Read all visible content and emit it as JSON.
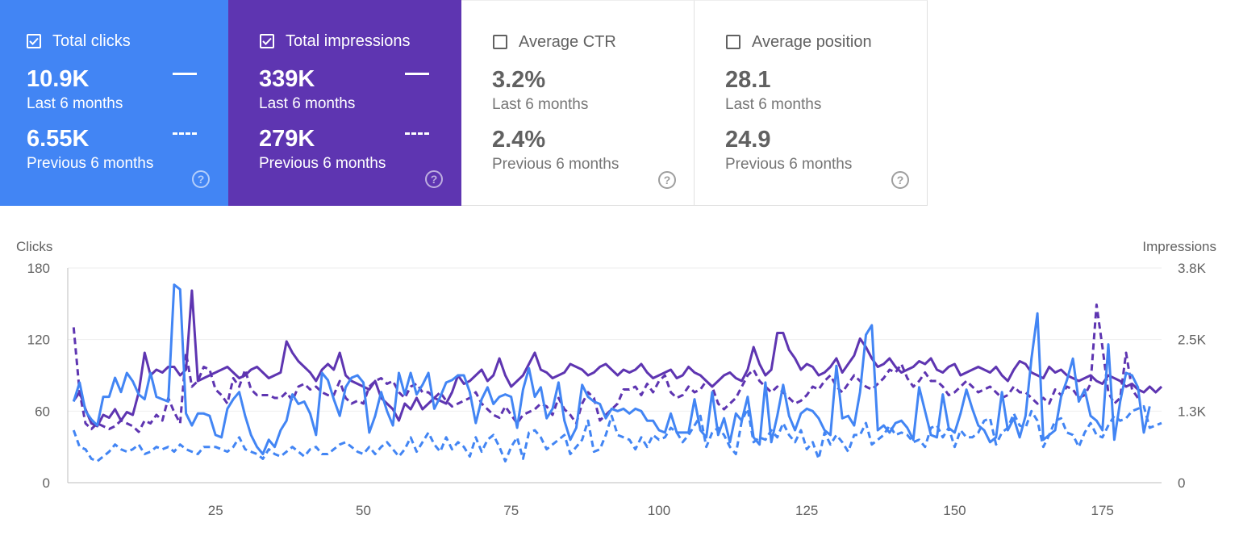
{
  "cards": [
    {
      "title": "Total clicks",
      "checked": true,
      "value": "10.9K",
      "period": "Last 6 months",
      "prev_value": "6.55K",
      "prev_period": "Previous 6 months",
      "help_icon": "help-circle-icon",
      "color": "#4285f4"
    },
    {
      "title": "Total impressions",
      "checked": true,
      "value": "339K",
      "period": "Last 6 months",
      "prev_value": "279K",
      "prev_period": "Previous 6 months",
      "help_icon": "help-circle-icon",
      "color": "#5e35b1"
    },
    {
      "title": "Average CTR",
      "checked": false,
      "value": "3.2%",
      "period": "Last 6 months",
      "prev_value": "2.4%",
      "prev_period": "Previous 6 months",
      "help_icon": "help-circle-icon",
      "color": "#ffffff"
    },
    {
      "title": "Average position",
      "checked": false,
      "value": "28.1",
      "period": "Last 6 months",
      "prev_value": "24.9",
      "prev_period": "Previous 6 months",
      "help_icon": "help-circle-icon",
      "color": "#ffffff"
    }
  ],
  "chart_data": {
    "type": "line",
    "ylabel_left": "Clicks",
    "ylabel_right": "Impressions",
    "left_ticks": [
      "180",
      "120",
      "60",
      "0"
    ],
    "right_ticks": [
      "3.8K",
      "2.5K",
      "1.3K",
      "0"
    ],
    "x_ticks": [
      "25",
      "50",
      "75",
      "100",
      "125",
      "150",
      "175"
    ],
    "ylim_left": [
      0,
      180
    ],
    "ylim_right": [
      0,
      3800
    ],
    "xlim": [
      0,
      185
    ],
    "grid": true,
    "series": [
      {
        "name": "Clicks",
        "axis": "left",
        "style": "solid",
        "color": "#4285f4",
        "values": [
          68,
          84,
          60,
          53,
          48,
          72,
          72,
          88,
          76,
          92,
          85,
          74,
          70,
          92,
          72,
          70,
          68,
          166,
          162,
          58,
          48,
          58,
          58,
          56,
          40,
          38,
          62,
          70,
          76,
          56,
          40,
          30,
          24,
          36,
          30,
          44,
          52,
          74,
          66,
          68,
          58,
          40,
          92,
          86,
          70,
          56,
          80,
          88,
          90,
          84,
          42,
          56,
          76,
          60,
          48,
          92,
          74,
          92,
          74,
          82,
          92,
          62,
          72,
          84,
          86,
          90,
          90,
          76,
          50,
          70,
          80,
          66,
          72,
          74,
          72,
          46,
          78,
          96,
          72,
          80,
          54,
          62,
          84,
          52,
          36,
          46,
          82,
          72,
          68,
          66,
          54,
          62,
          60,
          62,
          58,
          62,
          60,
          52,
          52,
          44,
          42,
          58,
          42,
          42,
          42,
          70,
          44,
          38,
          76,
          40,
          54,
          34,
          58,
          52,
          72,
          38,
          32,
          84,
          34,
          56,
          82,
          56,
          44,
          58,
          62,
          60,
          54,
          44,
          40,
          98,
          54,
          56,
          48,
          76,
          124,
          132,
          44,
          48,
          42,
          50,
          52,
          46,
          36,
          80,
          60,
          40,
          38,
          74,
          46,
          42,
          58,
          78,
          62,
          48,
          44,
          34,
          38,
          76,
          44,
          54,
          38,
          56,
          104,
          142,
          36,
          40,
          44,
          72,
          86,
          104,
          68,
          78,
          56,
          52,
          44,
          116,
          36,
          68,
          92,
          90,
          80,
          42,
          64
        ]
      },
      {
        "name": "Clicks",
        "axis": "left",
        "style": "dashed",
        "color": "#4285f4",
        "values": [
          44,
          30,
          28,
          20,
          18,
          22,
          26,
          32,
          28,
          26,
          28,
          32,
          24,
          26,
          30,
          28,
          30,
          26,
          32,
          28,
          26,
          24,
          30,
          30,
          30,
          28,
          26,
          30,
          38,
          28,
          26,
          24,
          20,
          28,
          24,
          22,
          26,
          30,
          26,
          22,
          28,
          30,
          24,
          24,
          28,
          32,
          34,
          30,
          26,
          24,
          30,
          24,
          30,
          34,
          28,
          22,
          28,
          38,
          26,
          34,
          42,
          32,
          26,
          38,
          28,
          34,
          30,
          22,
          38,
          26,
          36,
          40,
          30,
          18,
          30,
          38,
          20,
          42,
          44,
          38,
          28,
          32,
          36,
          40,
          24,
          30,
          36,
          52,
          26,
          28,
          40,
          56,
          40,
          38,
          36,
          28,
          38,
          30,
          40,
          36,
          38,
          46,
          42,
          34,
          40,
          48,
          56,
          30,
          42,
          46,
          40,
          30,
          24,
          52,
          62,
          34,
          38,
          36,
          44,
          38,
          50,
          40,
          34,
          44,
          28,
          34,
          20,
          42,
          32,
          40,
          34,
          26,
          40,
          40,
          50,
          32,
          36,
          40,
          48,
          40,
          42,
          40,
          34,
          36,
          30,
          46,
          48,
          38,
          46,
          30,
          44,
          38,
          38,
          42,
          52,
          54,
          32,
          42,
          46,
          58,
          48,
          46,
          60,
          52,
          30,
          40,
          52,
          54,
          42,
          40,
          30,
          42,
          50,
          40,
          38,
          48,
          56,
          52,
          54,
          60,
          62,
          64,
          46,
          48,
          50
        ]
      },
      {
        "name": "Impressions",
        "axis": "right",
        "style": "solid",
        "color": "#5e35b1",
        "values": [
          1450,
          1600,
          1300,
          1050,
          1000,
          1200,
          1150,
          1300,
          1100,
          1250,
          1200,
          1600,
          2300,
          1900,
          2000,
          1950,
          2050,
          2050,
          1900,
          2000,
          3400,
          1800,
          1850,
          1900,
          1950,
          2000,
          2050,
          1950,
          1850,
          1900,
          2000,
          2050,
          1950,
          1850,
          1900,
          1950,
          2500,
          2300,
          2150,
          2050,
          1950,
          1800,
          2000,
          2100,
          2000,
          2300,
          1900,
          1800,
          1750,
          1700,
          1650,
          1800,
          1500,
          1400,
          1300,
          1100,
          1400,
          1300,
          1500,
          1300,
          1400,
          1500,
          1450,
          1400,
          1600,
          1900,
          1750,
          1800,
          1900,
          2000,
          1800,
          1900,
          2200,
          1900,
          1700,
          1800,
          1900,
          2100,
          2300,
          2000,
          1950,
          1850,
          1900,
          1950,
          2100,
          2050,
          2000,
          1900,
          1950,
          2050,
          2100,
          2000,
          1900,
          2000,
          1950,
          2000,
          2100,
          1950,
          1850,
          1900,
          1950,
          2000,
          1850,
          1900,
          2050,
          1950,
          1900,
          1800,
          1700,
          1800,
          1900,
          1950,
          1850,
          1800,
          2000,
          2400,
          2100,
          1900,
          2000,
          2650,
          2650,
          2350,
          2200,
          2000,
          2100,
          2050,
          1900,
          1950,
          2050,
          2200,
          1950,
          2100,
          2250,
          2550,
          2400,
          2200,
          2050,
          2100,
          2200,
          2050,
          1950,
          2000,
          2050,
          2150,
          2100,
          2200,
          2000,
          1950,
          2050,
          2100,
          1900,
          1950,
          2000,
          2050,
          2000,
          1950,
          2050,
          1900,
          1800,
          2000,
          2150,
          2100,
          1950,
          1900,
          1850,
          2050,
          1950,
          2000,
          1900,
          1850,
          1800,
          1850,
          1900,
          1800,
          1750,
          1900,
          1850,
          1800,
          1700,
          1750,
          1650,
          1600,
          1700,
          1600,
          1700
        ]
      },
      {
        "name": "Impressions",
        "axis": "right",
        "style": "dashed",
        "color": "#5e35b1",
        "values": [
          2750,
          1600,
          1050,
          950,
          1050,
          1000,
          950,
          1000,
          1100,
          1050,
          1000,
          900,
          1100,
          1050,
          1200,
          1100,
          1500,
          1250,
          1050,
          2300,
          1700,
          1800,
          2050,
          2000,
          1650,
          1550,
          1400,
          1850,
          1700,
          2000,
          1650,
          1550,
          1550,
          1550,
          1500,
          1500,
          1600,
          1450,
          1700,
          1750,
          1650,
          1700,
          1600,
          1550,
          1550,
          1800,
          1500,
          1400,
          1450,
          1400,
          1700,
          1800,
          1850,
          1750,
          1800,
          1600,
          1500,
          1700,
          1750,
          1600,
          1600,
          1500,
          1600,
          1450,
          1350,
          1400,
          1450,
          1500,
          1600,
          1400,
          1300,
          1200,
          1150,
          1350,
          1200,
          1050,
          1200,
          1250,
          1300,
          1400,
          1350,
          1200,
          1500,
          1300,
          1200,
          1050,
          1400,
          1600,
          1500,
          1100,
          1200,
          1300,
          1400,
          1650,
          1650,
          1700,
          1550,
          1750,
          1600,
          1800,
          1900,
          1600,
          1500,
          1550,
          1700,
          1600,
          1650,
          1800,
          1700,
          1400,
          1300,
          1400,
          1500,
          1700,
          1900,
          2000,
          1800,
          1700,
          1600,
          1700,
          1600,
          1500,
          1400,
          1450,
          1550,
          1700,
          1650,
          1800,
          1900,
          1700,
          1600,
          1750,
          1900,
          1800,
          1700,
          1650,
          1750,
          1850,
          2000,
          1950,
          2100,
          1850,
          1700,
          1800,
          1950,
          1800,
          1800,
          1700,
          1550,
          1600,
          1700,
          1800,
          1700,
          1600,
          1650,
          1700,
          1600,
          1500,
          1550,
          1700,
          1600,
          1600,
          1500,
          1400,
          1500,
          1400,
          1650,
          1550,
          1700,
          1650,
          1500,
          1550,
          1750,
          3150,
          2400,
          1600,
          1400,
          1500,
          2300,
          1650,
          1500
        ]
      }
    ]
  }
}
